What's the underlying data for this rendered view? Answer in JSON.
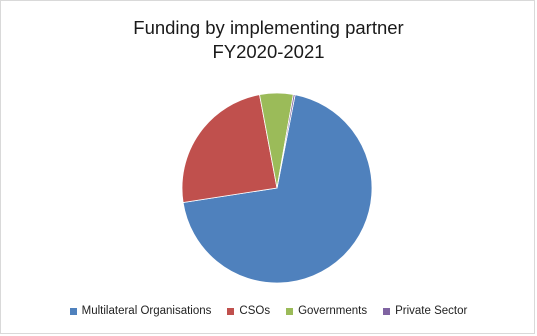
{
  "chart_data": {
    "type": "pie",
    "title": "Funding by implementing partner",
    "subtitle": "FY2020-2021",
    "categories": [
      "Multilateral Organisations",
      "CSOs",
      "Governments",
      "Private Sector"
    ],
    "values": [
      69.5,
      24.5,
      5.7,
      0.3
    ],
    "unit": "%",
    "colors": [
      "#4f81bd",
      "#c0504d",
      "#9bbb59",
      "#8064a2"
    ],
    "legend_position": "bottom",
    "start_angle_deg": 11,
    "direction": "clockwise"
  }
}
